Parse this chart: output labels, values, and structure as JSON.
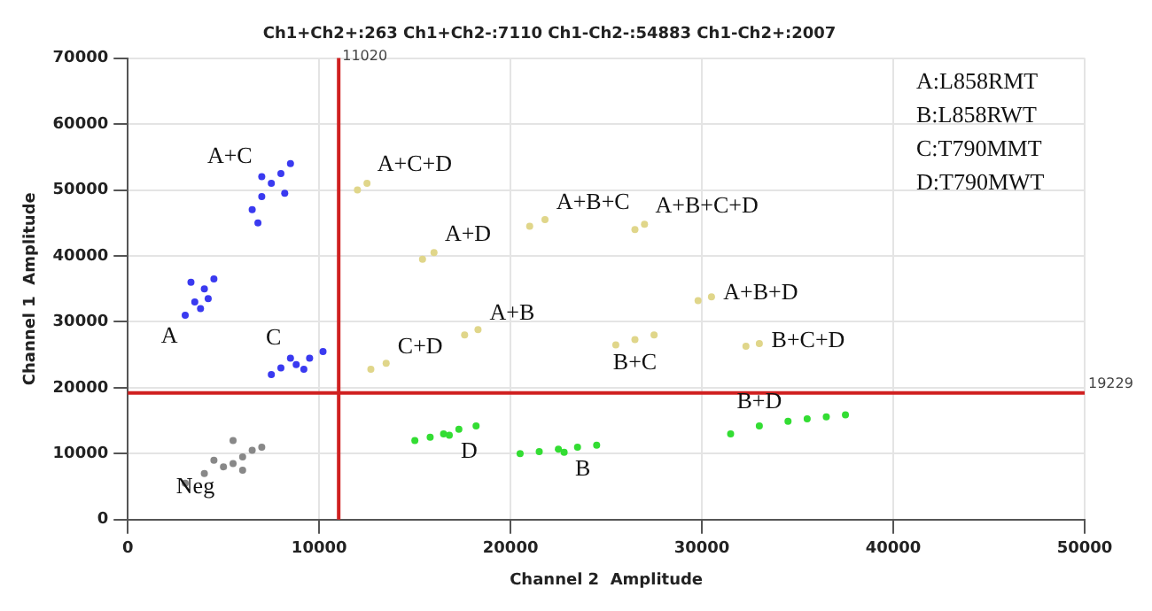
{
  "chart_data": {
    "type": "scatter",
    "title": "Ch1+Ch2+:263 Ch1+Ch2-:7110 Ch1-Ch2-:54883 Ch1-Ch2+:2007",
    "xlabel": "Channel 2  Amplitude",
    "ylabel": "Channel 1  Amplitude",
    "xlim": [
      0,
      50000
    ],
    "xticks": [
      0,
      10000,
      20000,
      30000,
      40000,
      50000
    ],
    "ylim": [
      0,
      70000
    ],
    "yticks": [
      0,
      10000,
      20000,
      30000,
      40000,
      50000,
      60000,
      70000
    ],
    "grid": true,
    "legend": false,
    "marker": "circle",
    "series": [
      {
        "color": "#3a3af0",
        "x": [
          6500,
          7000,
          7500,
          8000,
          8500,
          7000,
          8200,
          6800,
          3000,
          3500,
          4000,
          4500,
          3800,
          3300,
          4200,
          7500,
          8000,
          8800,
          9500,
          10200,
          8500,
          9200
        ],
        "values": [
          47000,
          49000,
          51000,
          52500,
          54000,
          52000,
          49500,
          45000,
          31000,
          33000,
          35000,
          36500,
          32000,
          36000,
          33500,
          22000,
          23000,
          23500,
          24500,
          25500,
          24500,
          22800
        ]
      },
      {
        "color": "#33dd33",
        "x": [
          15000,
          15800,
          16500,
          17300,
          18200,
          16800,
          20500,
          21500,
          22500,
          23500,
          24500,
          22800,
          31500,
          33000,
          34500,
          35500,
          36500,
          37500
        ],
        "values": [
          12000,
          12500,
          13000,
          13700,
          14200,
          12800,
          10000,
          10300,
          10700,
          11000,
          11300,
          10200,
          13000,
          14200,
          14900,
          15300,
          15600,
          15900
        ]
      },
      {
        "color": "#e0d68a",
        "x": [
          12000,
          12500,
          21000,
          21800,
          26500,
          27000,
          15400,
          16000,
          17600,
          18300,
          12700,
          13500,
          25500,
          26500,
          27500,
          29800,
          30500,
          32300,
          33000
        ],
        "values": [
          50000,
          51000,
          44500,
          45500,
          44000,
          44800,
          39500,
          40500,
          28000,
          28800,
          22800,
          23700,
          26500,
          27300,
          28000,
          33200,
          33800,
          26300,
          26700
        ]
      },
      {
        "color": "#888888",
        "x": [
          3000,
          4000,
          5000,
          5500,
          6000,
          6500,
          7000,
          4500,
          6000,
          5500
        ],
        "values": [
          5500,
          7000,
          8000,
          8500,
          9500,
          10500,
          11000,
          9000,
          7500,
          12000
        ]
      }
    ],
    "ref_lines": [
      {
        "axis": "x",
        "value": 11020,
        "label": "11020",
        "color": "#d02020"
      },
      {
        "axis": "y",
        "value": 19229,
        "label": "19229",
        "color": "#d02020"
      }
    ],
    "annotations": [
      "A:L858RMT",
      "B:L858RWT",
      "C:T790MMT",
      "D:T790MWT",
      {
        "text": "A+C",
        "x": 7000,
        "y": 52000
      },
      {
        "text": "A",
        "x": 3000,
        "y": 31000
      },
      {
        "text": "C",
        "x": 8500,
        "y": 24500
      },
      {
        "text": "Neg",
        "x": 5000,
        "y": 8000
      },
      {
        "text": "D",
        "x": 16800,
        "y": 12800
      },
      {
        "text": "B",
        "x": 22800,
        "y": 10200
      },
      {
        "text": "B+D",
        "x": 33000,
        "y": 14200
      },
      {
        "text": "A+C+D",
        "x": 12500,
        "y": 51000
      },
      {
        "text": "A+B+C",
        "x": 21800,
        "y": 45500
      },
      {
        "text": "A+B+C+D",
        "x": 27000,
        "y": 44800
      },
      {
        "text": "A+D",
        "x": 16000,
        "y": 40500
      },
      {
        "text": "A+B",
        "x": 18300,
        "y": 28800
      },
      {
        "text": "C+D",
        "x": 13500,
        "y": 23700
      },
      {
        "text": "B+C",
        "x": 26500,
        "y": 27300
      },
      {
        "text": "A+B+D",
        "x": 30500,
        "y": 33800
      },
      {
        "text": "B+C+D",
        "x": 33000,
        "y": 26700
      }
    ]
  }
}
